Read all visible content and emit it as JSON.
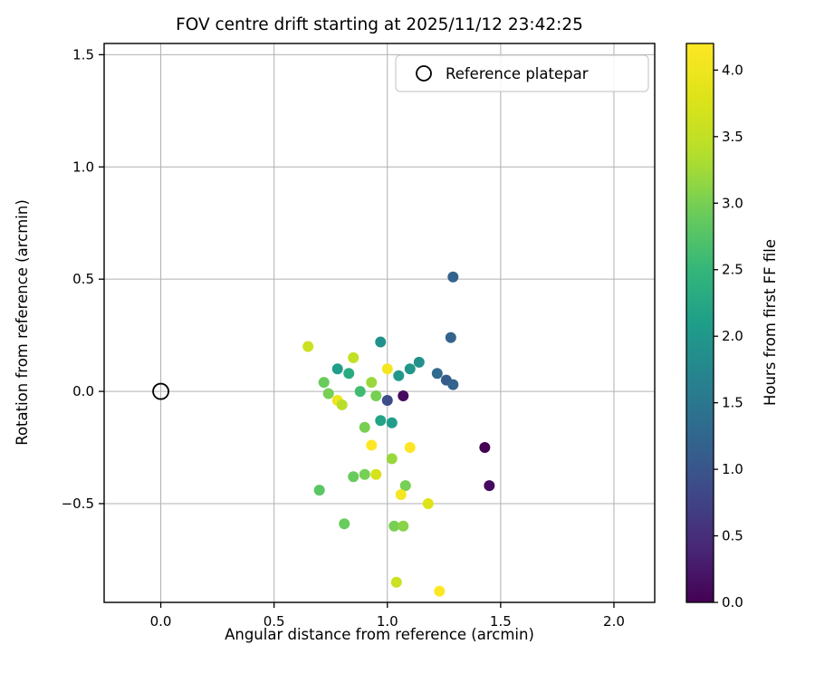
{
  "title": "FOV centre drift starting at 2025/11/12 23:42:25",
  "xlabel": "Angular distance from reference (arcmin)",
  "ylabel": "Rotation from reference (arcmin)",
  "legend": {
    "label": "Reference platepar"
  },
  "colorbar": {
    "label": "Hours from first FF file",
    "min": 0.0,
    "max": 4.2,
    "ticks": [
      0.0,
      0.5,
      1.0,
      1.5,
      2.0,
      2.5,
      3.0,
      3.5,
      4.0
    ],
    "tick_labels": [
      "0.0",
      "0.5",
      "1.0",
      "1.5",
      "2.0",
      "2.5",
      "3.0",
      "3.5",
      "4.0"
    ]
  },
  "axes": {
    "xlim": [
      -0.25,
      2.18
    ],
    "ylim": [
      -0.94,
      1.55
    ],
    "xticks": [
      0.0,
      0.5,
      1.0,
      1.5,
      2.0
    ],
    "xtick_labels": [
      "0.0",
      "0.5",
      "1.0",
      "1.5",
      "2.0"
    ],
    "yticks": [
      -0.5,
      0.0,
      0.5,
      1.0,
      1.5
    ],
    "ytick_labels": [
      "−0.5",
      "0.0",
      "0.5",
      "1.0",
      "1.5"
    ],
    "grid": true
  },
  "colors": {
    "grid": "#b0b0b0",
    "spine": "#000000",
    "legend_edge": "#cccccc",
    "viridis_min": "#440154",
    "viridis_max": "#fde725"
  },
  "chart_data": {
    "type": "scatter",
    "colormap": "viridis",
    "color_dimension": "hours",
    "reference_point": {
      "x": 0.0,
      "y": 0.0,
      "label": "Reference platepar"
    },
    "points": [
      {
        "x": 1.29,
        "y": 0.51,
        "hours": 1.2
      },
      {
        "x": 1.28,
        "y": 0.24,
        "hours": 1.2
      },
      {
        "x": 0.65,
        "y": 0.2,
        "hours": 3.6
      },
      {
        "x": 0.97,
        "y": 0.22,
        "hours": 1.9
      },
      {
        "x": 0.85,
        "y": 0.15,
        "hours": 3.5
      },
      {
        "x": 1.14,
        "y": 0.13,
        "hours": 1.9
      },
      {
        "x": 1.1,
        "y": 0.1,
        "hours": 2.0
      },
      {
        "x": 0.78,
        "y": 0.1,
        "hours": 2.1
      },
      {
        "x": 0.83,
        "y": 0.08,
        "hours": 2.3
      },
      {
        "x": 1.0,
        "y": 0.1,
        "hours": 4.1
      },
      {
        "x": 1.05,
        "y": 0.07,
        "hours": 2.0
      },
      {
        "x": 1.22,
        "y": 0.08,
        "hours": 1.3
      },
      {
        "x": 1.26,
        "y": 0.05,
        "hours": 1.1
      },
      {
        "x": 1.29,
        "y": 0.03,
        "hours": 1.2
      },
      {
        "x": 0.72,
        "y": 0.04,
        "hours": 2.9
      },
      {
        "x": 0.74,
        "y": -0.01,
        "hours": 3.0
      },
      {
        "x": 0.78,
        "y": -0.04,
        "hours": 4.0
      },
      {
        "x": 0.8,
        "y": -0.06,
        "hours": 3.4
      },
      {
        "x": 0.88,
        "y": 0.0,
        "hours": 2.6
      },
      {
        "x": 0.93,
        "y": 0.04,
        "hours": 3.2
      },
      {
        "x": 0.95,
        "y": -0.02,
        "hours": 3.0
      },
      {
        "x": 1.0,
        "y": -0.04,
        "hours": 0.9
      },
      {
        "x": 1.07,
        "y": -0.02,
        "hours": 0.1
      },
      {
        "x": 0.97,
        "y": -0.13,
        "hours": 2.2
      },
      {
        "x": 1.02,
        "y": -0.14,
        "hours": 2.1
      },
      {
        "x": 0.9,
        "y": -0.16,
        "hours": 3.0
      },
      {
        "x": 0.93,
        "y": -0.24,
        "hours": 4.2
      },
      {
        "x": 1.1,
        "y": -0.25,
        "hours": 4.2
      },
      {
        "x": 1.43,
        "y": -0.25,
        "hours": 0.0
      },
      {
        "x": 1.02,
        "y": -0.3,
        "hours": 3.2
      },
      {
        "x": 0.95,
        "y": -0.37,
        "hours": 3.7
      },
      {
        "x": 0.9,
        "y": -0.37,
        "hours": 3.0
      },
      {
        "x": 0.85,
        "y": -0.38,
        "hours": 2.9
      },
      {
        "x": 1.08,
        "y": -0.42,
        "hours": 3.0
      },
      {
        "x": 0.7,
        "y": -0.44,
        "hours": 2.8
      },
      {
        "x": 1.06,
        "y": -0.46,
        "hours": 4.1
      },
      {
        "x": 1.45,
        "y": -0.42,
        "hours": 0.1
      },
      {
        "x": 1.18,
        "y": -0.5,
        "hours": 3.8
      },
      {
        "x": 0.81,
        "y": -0.59,
        "hours": 2.9
      },
      {
        "x": 1.03,
        "y": -0.6,
        "hours": 3.0
      },
      {
        "x": 1.07,
        "y": -0.6,
        "hours": 3.1
      },
      {
        "x": 1.04,
        "y": -0.85,
        "hours": 3.6
      },
      {
        "x": 1.23,
        "y": -0.89,
        "hours": 4.2
      }
    ]
  }
}
